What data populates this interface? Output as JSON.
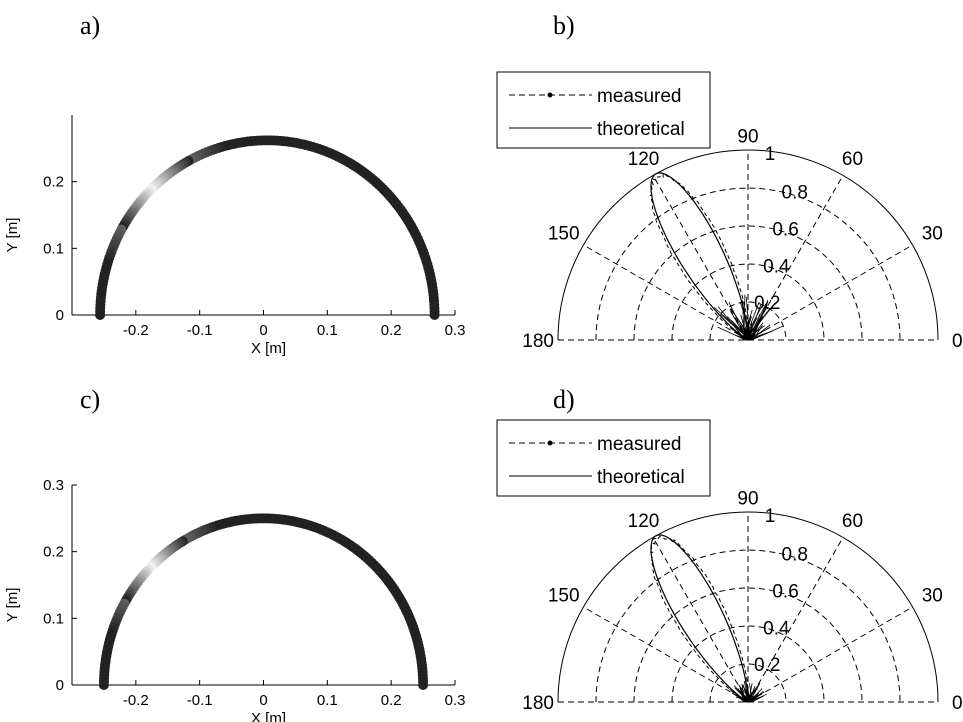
{
  "chart_data": [
    {
      "panel": "a)",
      "type": "scatter",
      "xlabel": "X [m]",
      "ylabel": "Y [m]",
      "xlim": [
        -0.3,
        0.3
      ],
      "ylim": [
        0,
        0.3
      ],
      "xticks": [
        "-0.2",
        "-0.1",
        "0",
        "0.1",
        "0.2",
        "0.3"
      ],
      "yticks": [
        "0",
        "0.1",
        "0.2"
      ],
      "series": [
        {
          "shape": "semicircle",
          "center": [
            0.006,
            0.0
          ],
          "radius": 0.262,
          "points": 160,
          "light_band_degrees": [
            118,
            150
          ],
          "marker_color": "#1f1f1f"
        }
      ]
    },
    {
      "panel": "b)",
      "type": "polar",
      "rlim": [
        0,
        1
      ],
      "rticks": [
        "0.2",
        "0.4",
        "0.6",
        "0.8",
        "1"
      ],
      "angle_ticks": [
        "0",
        "30",
        "60",
        "90",
        "120",
        "150",
        "180"
      ],
      "legend": {
        "placement": "top-left",
        "entries": [
          "measured",
          "theoretical"
        ]
      },
      "series": [
        {
          "name": "theoretical",
          "main_lobe_direction_deg": 119,
          "peak": 1.0,
          "lobe_width": 11
        },
        {
          "name": "measured",
          "main_lobe_direction_deg": 119,
          "peak": 1.0,
          "noise_level": 0.25
        }
      ]
    },
    {
      "panel": "c)",
      "type": "scatter",
      "xlabel": "X [m]",
      "ylabel": "Y [m]",
      "xlim": [
        -0.3,
        0.3
      ],
      "ylim": [
        0,
        0.3
      ],
      "xticks": [
        "-0.2",
        "-0.1",
        "0",
        "0.1",
        "0.2",
        "0.3"
      ],
      "yticks": [
        "0",
        "0.1",
        "0.2",
        "0.3"
      ],
      "series": [
        {
          "shape": "semicircle",
          "center": [
            0.0,
            0.0
          ],
          "radius": 0.25,
          "points": 160,
          "light_band_degrees": [
            120,
            150
          ],
          "marker_color": "#1f1f1f"
        }
      ]
    },
    {
      "panel": "d)",
      "type": "polar",
      "rlim": [
        0,
        1
      ],
      "rticks": [
        "0.2",
        "0.4",
        "0.6",
        "0.8",
        "1"
      ],
      "angle_ticks": [
        "0",
        "30",
        "60",
        "90",
        "120",
        "150",
        "180"
      ],
      "legend": {
        "placement": "top-left",
        "entries": [
          "measured",
          "theoretical"
        ]
      },
      "series": [
        {
          "name": "theoretical",
          "main_lobe_direction_deg": 119,
          "peak": 1.0,
          "lobe_width": 11
        },
        {
          "name": "measured",
          "main_lobe_direction_deg": 119,
          "peak": 1.0,
          "noise_level": 0.12
        }
      ]
    }
  ]
}
